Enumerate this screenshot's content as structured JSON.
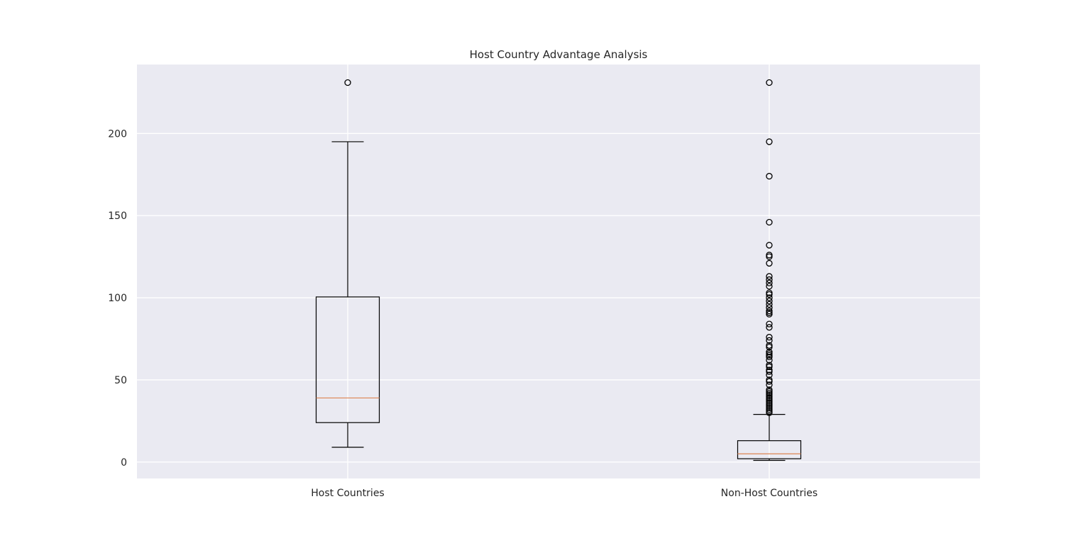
{
  "chart_data": {
    "type": "boxplot",
    "title": "Host Country Advantage Analysis",
    "xlabel": "",
    "ylabel": "",
    "categories": [
      "Host Countries",
      "Non-Host Countries"
    ],
    "ylim": [
      -10,
      242
    ],
    "yticks": [
      0,
      50,
      100,
      150,
      200
    ],
    "grid": true,
    "legend": "none",
    "boxes": [
      {
        "name": "Host Countries",
        "whisker_low": 9,
        "q1": 24,
        "median": 39,
        "q3": 100.5,
        "whisker_high": 195,
        "outliers": [
          231
        ]
      },
      {
        "name": "Non-Host Countries",
        "whisker_low": 1,
        "q1": 2,
        "median": 5,
        "q3": 13,
        "whisker_high": 29,
        "outliers": [
          231,
          195,
          174,
          146,
          132,
          126,
          125,
          121,
          113,
          111,
          109,
          107,
          103,
          102,
          100,
          98,
          96,
          94,
          92,
          91,
          90,
          84,
          82,
          76,
          74,
          71,
          70,
          67,
          66,
          65,
          64,
          62,
          59,
          58,
          56,
          55,
          53,
          50,
          49,
          47,
          44,
          43,
          42,
          41,
          40,
          39,
          38,
          37,
          36,
          35,
          34,
          33,
          32,
          31,
          30
        ]
      }
    ]
  },
  "colors": {
    "figure_background": "#ffffff",
    "axes_background": "#eaeaf2",
    "grid": "#ffffff",
    "box_edge": "#000000",
    "median": "#dd8452",
    "text": "#262626"
  }
}
